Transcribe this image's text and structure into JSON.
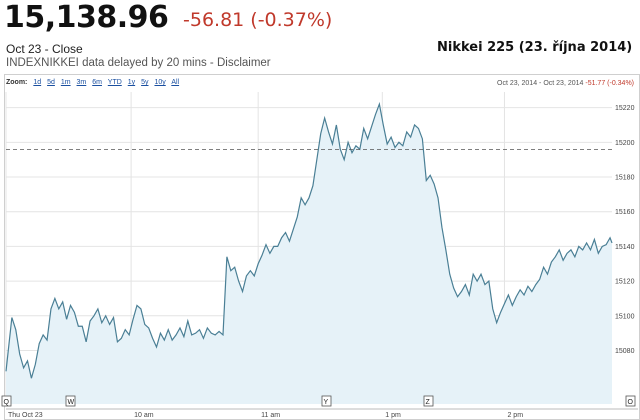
{
  "header": {
    "price": "15,138.96",
    "change": "-56.81 (-0.37%)",
    "date_close": "Oct 23 - Close",
    "ticker": "INDEXNIKKEI",
    "delay_text": "data delayed by 20 mins -",
    "disclaimer": "Disclaimer"
  },
  "chart_title": "Nikkei 225 (23. října 2014)",
  "toolbar": {
    "zoom_label": "Zoom:",
    "zoom_options": [
      "1d",
      "5d",
      "1m",
      "3m",
      "6m",
      "YTD",
      "1y",
      "5y",
      "10y",
      "All"
    ],
    "range_text": "Oct 23, 2014 - Oct 23, 2014",
    "range_change": "-51.77 (-0.34%)"
  },
  "colors": {
    "line": "#4a7f95",
    "fill": "#e6f2f8",
    "dashed": "#555555",
    "change": "#c0392b"
  },
  "chart_data": {
    "type": "area",
    "title": "Nikkei 225 (23. října 2014)",
    "y_ticks": [
      15080,
      15100,
      15120,
      15140,
      15160,
      15180,
      15200,
      15220
    ],
    "ylim": [
      15063,
      15229
    ],
    "x_ticks": [
      "Thu Oct 23",
      "10 am",
      "11 am",
      "1 pm",
      "2 pm"
    ],
    "previous_close": 15195.77,
    "grid": true,
    "series": [
      {
        "points": [
          [
            0,
            15068
          ],
          [
            6,
            15099
          ],
          [
            10,
            15092
          ],
          [
            14,
            15078
          ],
          [
            18,
            15070
          ],
          [
            22,
            15074
          ],
          [
            26,
            15064
          ],
          [
            30,
            15072
          ],
          [
            34,
            15084
          ],
          [
            38,
            15089
          ],
          [
            42,
            15086
          ],
          [
            46,
            15104
          ],
          [
            50,
            15110
          ],
          [
            54,
            15104
          ],
          [
            58,
            15108
          ],
          [
            62,
            15098
          ],
          [
            66,
            15106
          ],
          [
            70,
            15102
          ],
          [
            74,
            15094
          ],
          [
            78,
            15094
          ],
          [
            82,
            15085
          ],
          [
            86,
            15097
          ],
          [
            90,
            15100
          ],
          [
            94,
            15104
          ],
          [
            98,
            15096
          ],
          [
            102,
            15100
          ],
          [
            106,
            15095
          ],
          [
            110,
            15099
          ],
          [
            114,
            15085
          ],
          [
            118,
            15087
          ],
          [
            122,
            15092
          ],
          [
            126,
            15089
          ],
          [
            130,
            15098
          ],
          [
            134,
            15106
          ],
          [
            138,
            15104
          ],
          [
            142,
            15095
          ],
          [
            146,
            15093
          ],
          [
            150,
            15087
          ],
          [
            154,
            15082
          ],
          [
            158,
            15090
          ],
          [
            162,
            15086
          ],
          [
            166,
            15092
          ],
          [
            170,
            15086
          ],
          [
            174,
            15089
          ],
          [
            178,
            15093
          ],
          [
            182,
            15088
          ],
          [
            186,
            15097
          ],
          [
            190,
            15089
          ],
          [
            194,
            15090
          ],
          [
            198,
            15092
          ],
          [
            202,
            15087
          ],
          [
            206,
            15093
          ],
          [
            210,
            15090
          ],
          [
            214,
            15089
          ],
          [
            218,
            15091
          ],
          [
            222,
            15089
          ],
          [
            226,
            15134
          ],
          [
            230,
            15126
          ],
          [
            234,
            15128
          ],
          [
            238,
            15120
          ],
          [
            242,
            15114
          ],
          [
            246,
            15123
          ],
          [
            250,
            15126
          ],
          [
            254,
            15123
          ],
          [
            258,
            15130
          ],
          [
            262,
            15135
          ],
          [
            266,
            15141
          ],
          [
            270,
            15136
          ],
          [
            274,
            15140
          ],
          [
            278,
            15140
          ],
          [
            282,
            15145
          ],
          [
            286,
            15148
          ],
          [
            290,
            15143
          ],
          [
            294,
            15150
          ],
          [
            298,
            15157
          ],
          [
            302,
            15168
          ],
          [
            306,
            15164
          ],
          [
            310,
            15168
          ],
          [
            314,
            15175
          ],
          [
            318,
            15190
          ],
          [
            322,
            15205
          ],
          [
            326,
            15214
          ],
          [
            330,
            15206
          ],
          [
            334,
            15199
          ],
          [
            338,
            15210
          ],
          [
            342,
            15196
          ],
          [
            346,
            15190
          ],
          [
            350,
            15200
          ],
          [
            354,
            15194
          ],
          [
            358,
            15198
          ],
          [
            362,
            15196
          ],
          [
            366,
            15208
          ],
          [
            370,
            15202
          ],
          [
            374,
            15209
          ],
          [
            378,
            15216
          ],
          [
            382,
            15222
          ],
          [
            386,
            15210
          ],
          [
            390,
            15199
          ],
          [
            394,
            15203
          ],
          [
            398,
            15197
          ],
          [
            402,
            15200
          ],
          [
            406,
            15198
          ],
          [
            410,
            15206
          ],
          [
            414,
            15203
          ],
          [
            418,
            15210
          ],
          [
            422,
            15208
          ],
          [
            426,
            15202
          ],
          [
            430,
            15178
          ],
          [
            434,
            15181
          ],
          [
            438,
            15176
          ],
          [
            442,
            15168
          ],
          [
            446,
            15151
          ],
          [
            450,
            15138
          ],
          [
            454,
            15124
          ],
          [
            458,
            15116
          ],
          [
            462,
            15111
          ],
          [
            466,
            15114
          ],
          [
            470,
            15118
          ],
          [
            474,
            15112
          ],
          [
            478,
            15124
          ],
          [
            482,
            15120
          ],
          [
            486,
            15124
          ],
          [
            490,
            15118
          ],
          [
            494,
            15120
          ],
          [
            498,
            15104
          ],
          [
            502,
            15096
          ],
          [
            506,
            15102
          ],
          [
            510,
            15107
          ],
          [
            514,
            15112
          ],
          [
            518,
            15106
          ],
          [
            522,
            15111
          ],
          [
            526,
            15115
          ],
          [
            530,
            15112
          ],
          [
            534,
            15117
          ],
          [
            538,
            15114
          ],
          [
            542,
            15118
          ],
          [
            546,
            15121
          ],
          [
            550,
            15128
          ],
          [
            554,
            15124
          ],
          [
            558,
            15131
          ],
          [
            562,
            15134
          ],
          [
            566,
            15138
          ],
          [
            570,
            15132
          ],
          [
            574,
            15136
          ],
          [
            578,
            15138
          ],
          [
            582,
            15134
          ],
          [
            586,
            15140
          ],
          [
            590,
            15138
          ],
          [
            594,
            15142
          ],
          [
            598,
            15138
          ],
          [
            602,
            15144
          ],
          [
            606,
            15136
          ],
          [
            610,
            15140
          ],
          [
            614,
            15141
          ],
          [
            618,
            15145
          ],
          [
            620,
            15142
          ]
        ]
      }
    ],
    "flags": [
      "Q",
      "W",
      "Y",
      "Z",
      "O"
    ]
  }
}
